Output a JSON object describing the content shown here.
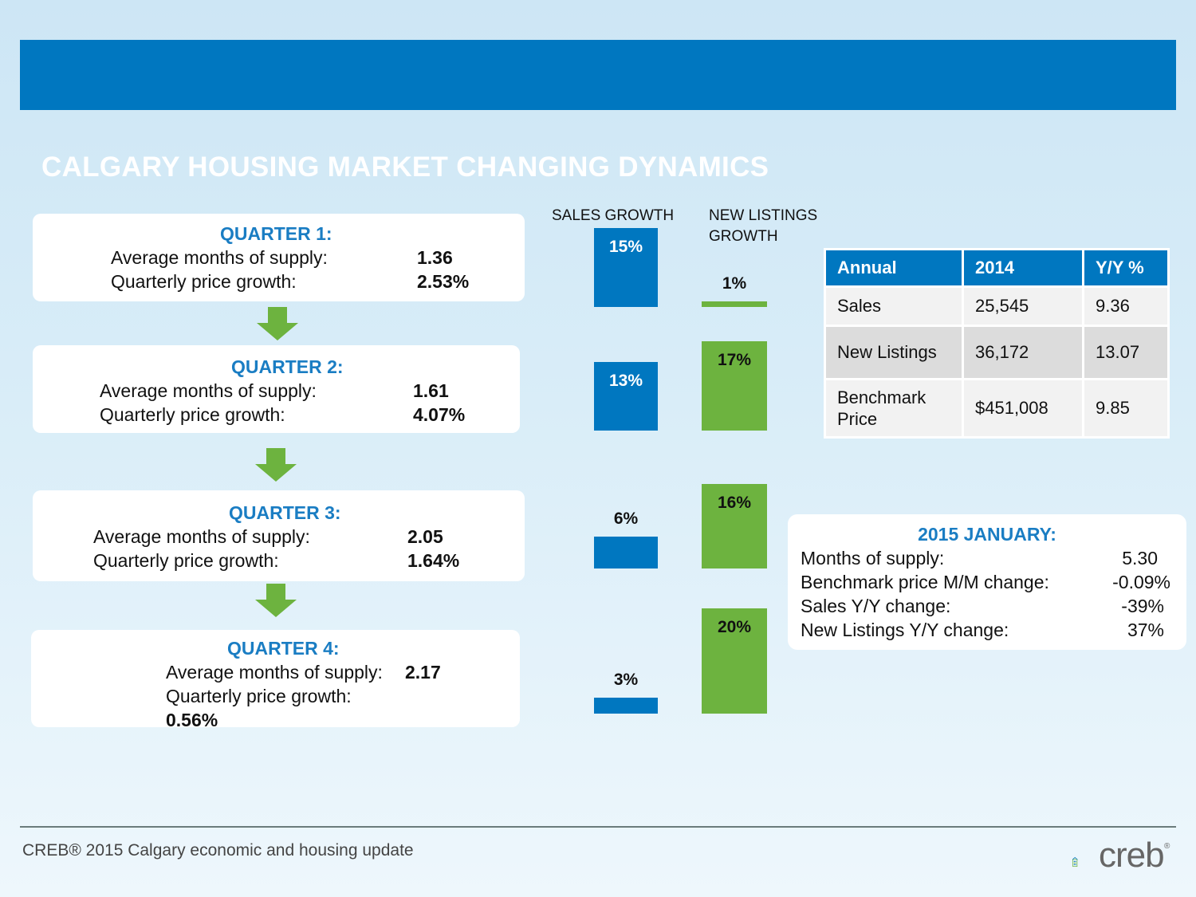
{
  "title": "CALGARY HOUSING MARKET CHANGING DYNAMICS",
  "quarters": [
    {
      "heading": "QUARTER 1:",
      "supply_label": "Average months of supply:",
      "supply_value": "1.36",
      "price_label": "Quarterly price growth:",
      "price_value": "2.53%"
    },
    {
      "heading": "QUARTER 2:",
      "supply_label": "Average months of supply:",
      "supply_value": "1.61",
      "price_label": "Quarterly price growth:",
      "price_value": "4.07%"
    },
    {
      "heading": "QUARTER 3:",
      "supply_label": "Average months of supply:",
      "supply_value": "2.05",
      "price_label": "Quarterly price growth:",
      "price_value": "1.64%"
    },
    {
      "heading": "QUARTER 4:",
      "supply_label": "Average months of supply:",
      "supply_value": "2.17",
      "price_label": "Quarterly price growth:",
      "price_value": "0.56%"
    }
  ],
  "columns": {
    "sales_title": "SALES GROWTH",
    "listings_title_1": "NEW LISTINGS",
    "listings_title_2": "GROWTH"
  },
  "chart_data": {
    "type": "bar",
    "categories": [
      "Quarter 1",
      "Quarter 2",
      "Quarter 3",
      "Quarter 4"
    ],
    "series": [
      {
        "name": "SALES GROWTH",
        "values": [
          15,
          13,
          6,
          3
        ],
        "labels": [
          "15%",
          "13%",
          "6%",
          "3%"
        ],
        "color": "#0077c0"
      },
      {
        "name": "NEW LISTINGS GROWTH",
        "values": [
          1,
          17,
          16,
          20
        ],
        "labels": [
          "1%",
          "17%",
          "16%",
          "20%"
        ],
        "color": "#6db33f"
      }
    ]
  },
  "annual_table": {
    "headers": [
      "Annual",
      "2014",
      "Y/Y %"
    ],
    "rows": [
      [
        "Sales",
        "25,545",
        "9.36"
      ],
      [
        "New Listings",
        "36,172",
        "13.07"
      ],
      [
        "Benchmark Price",
        "$451,008",
        "9.85"
      ]
    ]
  },
  "january": {
    "heading": "2015 JANUARY:",
    "items": [
      {
        "label": "Months of supply:",
        "value": "5.30"
      },
      {
        "label": "Benchmark price M/M change:",
        "value": "-0.09%"
      },
      {
        "label": "Sales Y/Y change:",
        "value": "-39%"
      },
      {
        "label": "New Listings Y/Y change:",
        "value": "37%"
      }
    ]
  },
  "footer": "CREB® 2015 Calgary economic and housing update",
  "logo": {
    "text": "creb",
    "reg": "®"
  },
  "colors": {
    "accent_blue": "#0077c0",
    "heading_blue": "#1a7dc3",
    "green": "#6db33f"
  }
}
